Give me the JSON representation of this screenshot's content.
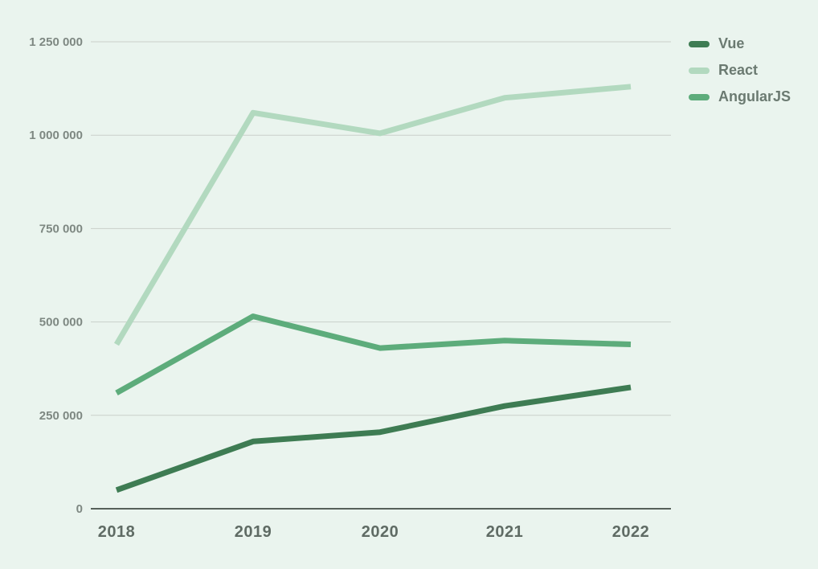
{
  "chart_data": {
    "type": "line",
    "title": "",
    "categories": [
      "2018",
      "2019",
      "2020",
      "2021",
      "2022"
    ],
    "series": [
      {
        "name": "Vue",
        "color": "#3e7c53",
        "values": [
          50000,
          180000,
          205000,
          275000,
          325000
        ]
      },
      {
        "name": "React",
        "color": "#b2d9bf",
        "values": [
          440000,
          1060000,
          1005000,
          1100000,
          1130000
        ]
      },
      {
        "name": "AngularJS",
        "color": "#5dac7b",
        "values": [
          310000,
          515000,
          430000,
          450000,
          440000
        ]
      }
    ],
    "xlabel": "",
    "ylabel": "",
    "ylim": [
      0,
      1250000
    ],
    "y_ticks": [
      {
        "value": 0,
        "label": "0"
      },
      {
        "value": 250000,
        "label": "250 000"
      },
      {
        "value": 500000,
        "label": "500 000"
      },
      {
        "value": 750000,
        "label": "750 000"
      },
      {
        "value": 1000000,
        "label": "1 000 000"
      },
      {
        "value": 1250000,
        "label": "1 250 000"
      }
    ],
    "grid": true,
    "legend_position": "top-right"
  },
  "style": {
    "background": "#eaf4ee",
    "grid_color": "#c9cfca",
    "axis_color": "#566059",
    "y_label_color": "#7e8882",
    "x_label_color": "#5f6b64",
    "legend_text_color": "#6b7a71"
  }
}
